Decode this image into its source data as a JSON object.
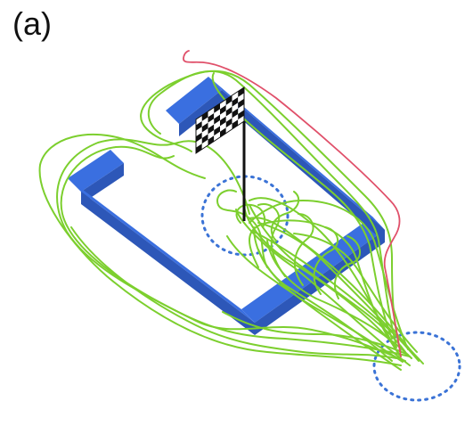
{
  "panel_label": "(a)",
  "colors": {
    "wall_top": "#3a6fe0",
    "wall_side": "#2d57b8",
    "trajectory_green": "#7ccf2e",
    "trajectory_red": "#e0506a",
    "start_goal_circle": "#3b73d6",
    "flag_pole": "#111111",
    "flag_dark": "#111111",
    "flag_light": "#ffffff"
  },
  "icons": [
    "checkered-flag-icon"
  ]
}
